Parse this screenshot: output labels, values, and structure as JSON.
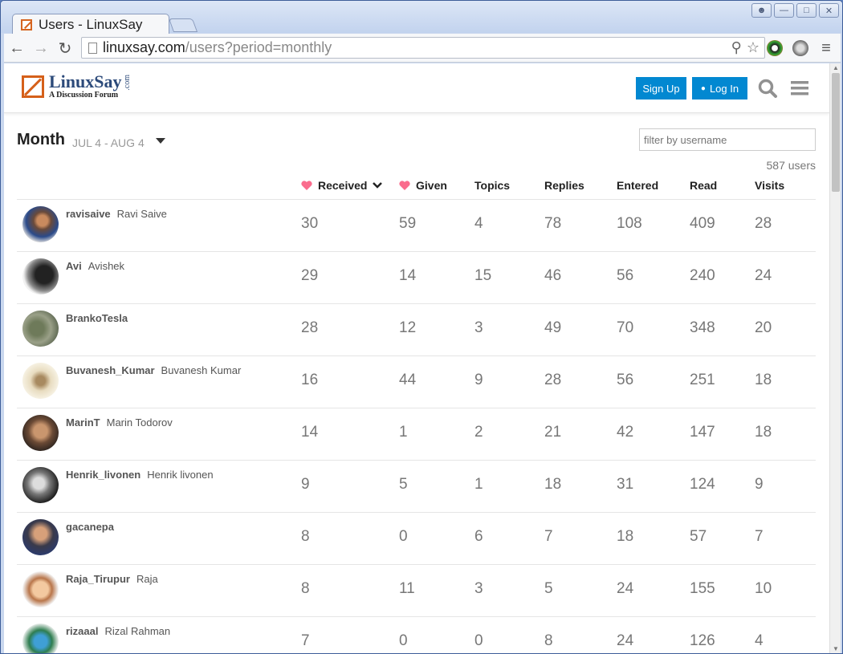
{
  "browser": {
    "tab_title": "Users - LinuxSay",
    "url_host": "linuxsay.com",
    "url_path": "/users?period=monthly"
  },
  "header": {
    "logo_name": "LinuxSay",
    "logo_tagline": "A Discussion Forum",
    "logo_com": ".com",
    "signup_label": "Sign Up",
    "login_label": "Log In"
  },
  "filters": {
    "period_label": "Month",
    "date_range": "JUL 4 - AUG 4",
    "username_placeholder": "filter by username",
    "user_count": "587 users"
  },
  "columns": [
    "Received",
    "Given",
    "Topics",
    "Replies",
    "Entered",
    "Read",
    "Visits"
  ],
  "accent": {
    "heart": "#fa6c8d",
    "button": "#0288d1",
    "logo": "#d5601a"
  },
  "users": [
    {
      "username": "ravisaive",
      "name": "Ravi Saive",
      "received": "30",
      "given": "59",
      "topics": "4",
      "replies": "78",
      "entered": "108",
      "read": "409",
      "visits": "28"
    },
    {
      "username": "Avi",
      "name": "Avishek",
      "received": "29",
      "given": "14",
      "topics": "15",
      "replies": "46",
      "entered": "56",
      "read": "240",
      "visits": "24"
    },
    {
      "username": "BrankoTesla",
      "name": "",
      "received": "28",
      "given": "12",
      "topics": "3",
      "replies": "49",
      "entered": "70",
      "read": "348",
      "visits": "20"
    },
    {
      "username": "Buvanesh_Kumar",
      "name": "Buvanesh Kumar",
      "received": "16",
      "given": "44",
      "topics": "9",
      "replies": "28",
      "entered": "56",
      "read": "251",
      "visits": "18"
    },
    {
      "username": "MarinT",
      "name": "Marin Todorov",
      "received": "14",
      "given": "1",
      "topics": "2",
      "replies": "21",
      "entered": "42",
      "read": "147",
      "visits": "18"
    },
    {
      "username": "Henrik_livonen",
      "name": "Henrik livonen",
      "received": "9",
      "given": "5",
      "topics": "1",
      "replies": "18",
      "entered": "31",
      "read": "124",
      "visits": "9"
    },
    {
      "username": "gacanepa",
      "name": "",
      "received": "8",
      "given": "0",
      "topics": "6",
      "replies": "7",
      "entered": "18",
      "read": "57",
      "visits": "7"
    },
    {
      "username": "Raja_Tirupur",
      "name": "Raja",
      "received": "8",
      "given": "11",
      "topics": "3",
      "replies": "5",
      "entered": "24",
      "read": "155",
      "visits": "10"
    },
    {
      "username": "rizaaal",
      "name": "Rizal Rahman",
      "received": "7",
      "given": "0",
      "topics": "0",
      "replies": "8",
      "entered": "24",
      "read": "126",
      "visits": "4"
    }
  ]
}
